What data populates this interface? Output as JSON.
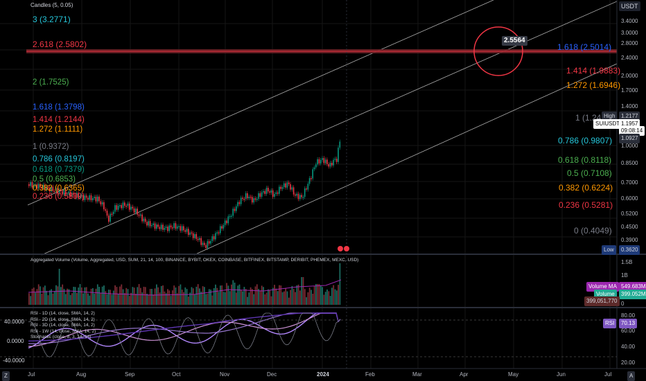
{
  "header": {
    "legend_main": "Candles (5, 0.05)",
    "currency": "USDT"
  },
  "fib_left": [
    {
      "label": "3 (3.2771)",
      "color": "#26c6da"
    },
    {
      "label": "2.618 (2.5802)",
      "color": "#f23645"
    },
    {
      "label": "2 (1.7525)",
      "color": "#4caf50"
    },
    {
      "label": "1.618 (1.3798)",
      "color": "#2962ff"
    },
    {
      "label": "1.414 (1.2144)",
      "color": "#f23645"
    },
    {
      "label": "1.272 (1.1111)",
      "color": "#ff9800"
    },
    {
      "label": "1 (0.9372)",
      "color": "#787b86"
    },
    {
      "label": "0.786 (0.8197)",
      "color": "#26c6da"
    },
    {
      "label": "0.618 (0.7379)",
      "color": "#089981"
    },
    {
      "label": "0.5 (0.6853)",
      "color": "#4caf50"
    },
    {
      "label": "0.382 (0.6365)",
      "color": "#ff9800"
    },
    {
      "label": "0.236 (0.5809)",
      "color": "#f23645"
    }
  ],
  "fib_right": [
    {
      "label": "1.618 (2.5014)",
      "color": "#2962ff"
    },
    {
      "label": "1.414 (1.9883)",
      "color": "#f23645"
    },
    {
      "label": "1.272 (1.6946)",
      "color": "#ff9800"
    },
    {
      "label": "1 (1.24",
      "color": "#787b86"
    },
    {
      "label": "0.786 (0.9807)",
      "color": "#26c6da"
    },
    {
      "label": "0.618 (0.8118)",
      "color": "#4caf50"
    },
    {
      "label": "0.5 (0.7108)",
      "color": "#4caf50"
    },
    {
      "label": "0.382 (0.6224)",
      "color": "#ff9800"
    },
    {
      "label": "0.236 (0.5281)",
      "color": "#f23645"
    },
    {
      "label": "0 (0.4049)",
      "color": "#787b86"
    }
  ],
  "price_callout": "2.5564",
  "price_axis": {
    "ticks": [
      "3.4000",
      "3.0000",
      "2.8000",
      "2.4000",
      "2.0000",
      "1.7000",
      "1.4000",
      "1.0000",
      "0.8500",
      "0.7000",
      "0.6000",
      "0.5200",
      "0.4500",
      "0.3900"
    ],
    "high_tag": "High",
    "high_value": "1.2177",
    "symbol_tag": "SUIUSDT",
    "current_price": "1.1957",
    "countdown": "09:08:14",
    "prev_value": "1.0927",
    "low_tag": "Low",
    "low_value": "0.3620"
  },
  "volume_pane": {
    "legend": "Aggregated Volume (Volume, Aggregated, USD, SUM, 21, 14, 100, BINANCE, BYBIT, OKEX, COINBASE, BITFINEX, BITSTAMP, DERIBIT, PHEMEX, MEXC, USD)",
    "ticks": [
      "1.5B",
      "1B",
      "0"
    ],
    "ma_tag": "Volume MA",
    "ma_value": "549.683M",
    "vol_tag": "Volume",
    "vol_value": "399.052M",
    "small_value": "399,051,770"
  },
  "rsi_pane": {
    "legends": [
      "RSI - 1D (14, close, SMA, 14, 2)",
      "RSI - 2D (14, close, SMA, 14, 2)",
      "RSI - 3D (14, close, SMA, 14, 2)",
      "RSI - 1W (14, close, SMA, 14, 2)",
      "Stochastic (close, 8, 3, 14, 14)"
    ],
    "left_ticks": [
      "40.0000",
      "0.0000",
      "-40.0000"
    ],
    "right_ticks": [
      "80.00",
      "60.00",
      "40.00",
      "20.00"
    ],
    "rsi_tag": "RSI",
    "rsi_value": "70.13"
  },
  "time_axis": {
    "labels": [
      "Jul",
      "Aug",
      "Sep",
      "Oct",
      "Nov",
      "Dec",
      "2024",
      "Feb",
      "Mar",
      "Apr",
      "May",
      "Jun",
      "Jul"
    ],
    "left_button": "Z",
    "right_button": "A"
  },
  "colors": {
    "up": "#089981",
    "down": "#f23645",
    "background": "#000000",
    "axis_text": "#b2b5be",
    "channel": "#c9c9c9",
    "resistance": "#f23645"
  }
}
